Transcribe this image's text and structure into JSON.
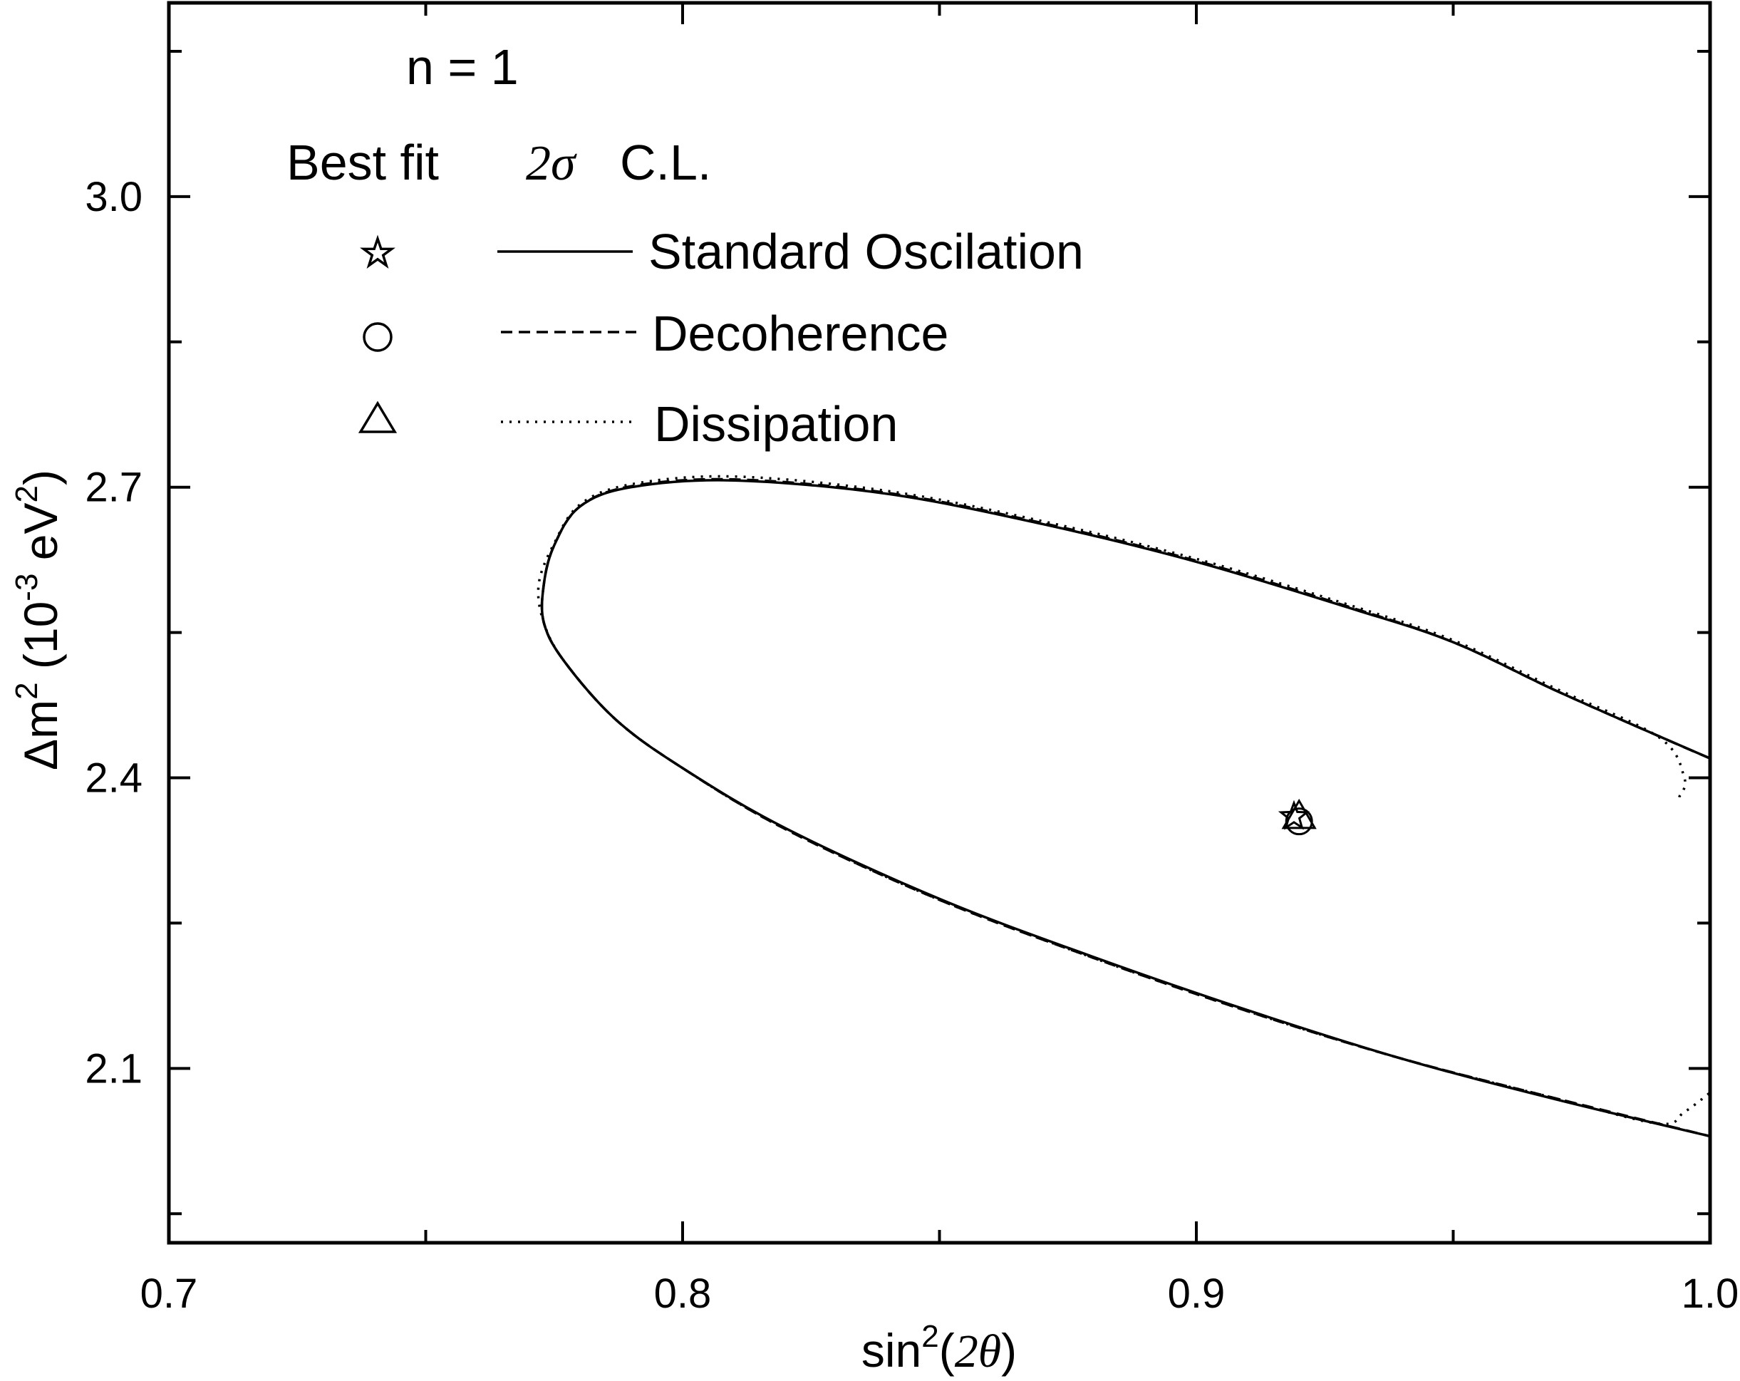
{
  "chart_data": {
    "type": "line",
    "title": "",
    "annotation": "n = 1",
    "xlabel": {
      "prefix": "sin",
      "superscript": "2",
      "open": "(",
      "symbol": "2θ",
      "close": ")"
    },
    "ylabel": {
      "prefix": "Δm",
      "sup1": "2",
      "unit_open": " (10",
      "sup2": "-3",
      "unit_mid": " eV",
      "sup3": "2",
      "unit_close": ")"
    },
    "xlim": [
      0.7,
      1.0
    ],
    "ylim": [
      1.92,
      3.2
    ],
    "x_ticks": [
      "0.7",
      "0.8",
      "0.9",
      "1.0"
    ],
    "y_ticks": [
      "2.1",
      "2.4",
      "2.7",
      "3.0"
    ],
    "x_tick_values": [
      0.7,
      0.8,
      0.9,
      1.0
    ],
    "y_tick_values": [
      2.1,
      2.4,
      2.7,
      3.0
    ],
    "legend": {
      "placement": "top-left",
      "header_best_fit": "Best fit",
      "header_cl_symbol": "2σ",
      "header_cl_text": "C.L."
    },
    "series": [
      {
        "name": "Standard Oscilation",
        "marker": "star",
        "line_style": "solid",
        "best_fit": {
          "x": 0.919,
          "y": 2.36
        },
        "contour": [
          [
            1.0,
            2.42
          ],
          [
            0.99,
            2.443
          ],
          [
            0.97,
            2.49
          ],
          [
            0.95,
            2.54
          ],
          [
            0.93,
            2.575
          ],
          [
            0.9,
            2.623
          ],
          [
            0.87,
            2.662
          ],
          [
            0.84,
            2.693
          ],
          [
            0.81,
            2.707
          ],
          [
            0.79,
            2.7
          ],
          [
            0.78,
            2.68
          ],
          [
            0.775,
            2.64
          ],
          [
            0.773,
            2.6
          ],
          [
            0.773,
            2.56
          ],
          [
            0.777,
            2.52
          ],
          [
            0.787,
            2.46
          ],
          [
            0.8,
            2.41
          ],
          [
            0.82,
            2.348
          ],
          [
            0.85,
            2.275
          ],
          [
            0.88,
            2.215
          ],
          [
            0.91,
            2.16
          ],
          [
            0.94,
            2.11
          ],
          [
            0.97,
            2.068
          ],
          [
            1.0,
            2.03
          ]
        ]
      },
      {
        "name": "Decoherence",
        "marker": "circle",
        "line_style": "dashed",
        "best_fit": {
          "x": 0.92,
          "y": 2.355
        },
        "contour": [
          [
            1.0,
            2.42
          ],
          [
            0.99,
            2.443
          ],
          [
            0.97,
            2.49
          ],
          [
            0.95,
            2.54
          ],
          [
            0.93,
            2.576
          ],
          [
            0.9,
            2.624
          ],
          [
            0.87,
            2.663
          ],
          [
            0.84,
            2.694
          ],
          [
            0.81,
            2.708
          ],
          [
            0.79,
            2.701
          ],
          [
            0.78,
            2.68
          ],
          [
            0.775,
            2.64
          ],
          [
            0.773,
            2.6
          ],
          [
            0.773,
            2.56
          ],
          [
            0.777,
            2.52
          ],
          [
            0.787,
            2.46
          ],
          [
            0.8,
            2.41
          ],
          [
            0.82,
            2.347
          ],
          [
            0.85,
            2.274
          ],
          [
            0.88,
            2.214
          ],
          [
            0.91,
            2.159
          ],
          [
            0.94,
            2.11
          ],
          [
            0.97,
            2.069
          ],
          [
            1.0,
            2.03
          ]
        ]
      },
      {
        "name": "Dissipation",
        "marker": "triangle",
        "line_style": "dotted",
        "best_fit": {
          "x": 0.92,
          "y": 2.36
        },
        "contour": [
          [
            0.994,
            2.38
          ],
          [
            0.995,
            2.4
          ],
          [
            0.99,
            2.442
          ],
          [
            0.97,
            2.492
          ],
          [
            0.95,
            2.542
          ],
          [
            0.93,
            2.578
          ],
          [
            0.9,
            2.626
          ],
          [
            0.87,
            2.665
          ],
          [
            0.84,
            2.696
          ],
          [
            0.81,
            2.711
          ],
          [
            0.79,
            2.703
          ],
          [
            0.78,
            2.682
          ],
          [
            0.775,
            2.642
          ],
          [
            0.772,
            2.6
          ],
          [
            0.773,
            2.56
          ],
          [
            0.777,
            2.52
          ],
          [
            0.787,
            2.46
          ],
          [
            0.8,
            2.41
          ],
          [
            0.82,
            2.347
          ],
          [
            0.85,
            2.274
          ],
          [
            0.88,
            2.214
          ],
          [
            0.91,
            2.159
          ],
          [
            0.94,
            2.11
          ],
          [
            0.97,
            2.069
          ],
          [
            0.99,
            2.043
          ],
          [
            0.995,
            2.055
          ],
          [
            1.0,
            2.075
          ]
        ]
      }
    ]
  }
}
